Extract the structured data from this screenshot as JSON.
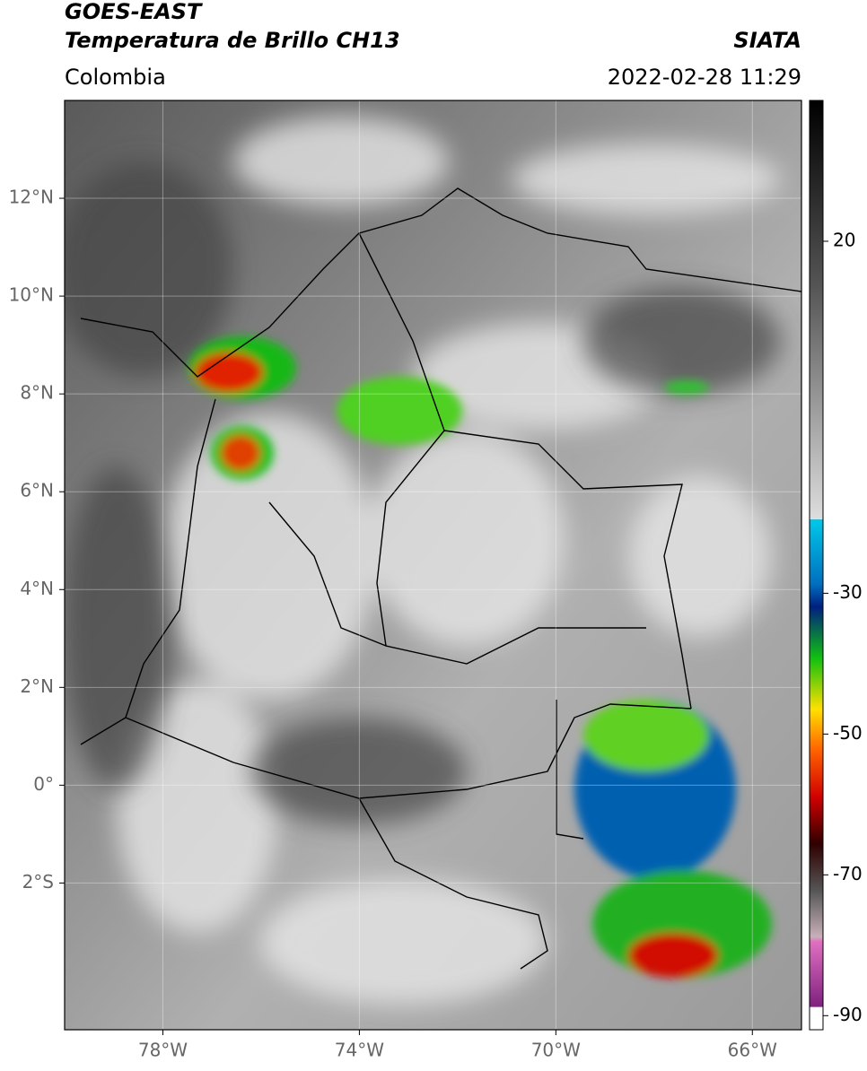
{
  "header": {
    "title": "GOES-EAST",
    "subtitle": "Temperatura de Brillo CH13",
    "source": "SIATA",
    "region": "Colombia",
    "timestamp": "2022-02-28 11:29"
  },
  "chart_data": {
    "type": "map",
    "xlim": [
      -80,
      -65
    ],
    "ylim": [
      -5,
      14
    ],
    "xticks": [
      {
        "value": -78,
        "label": "78°W"
      },
      {
        "value": -74,
        "label": "74°W"
      },
      {
        "value": -70,
        "label": "70°W"
      },
      {
        "value": -66,
        "label": "66°W"
      }
    ],
    "yticks": [
      {
        "value": 12,
        "label": "12°N"
      },
      {
        "value": 10,
        "label": "10°N"
      },
      {
        "value": 8,
        "label": "8°N"
      },
      {
        "value": 6,
        "label": "6°N"
      },
      {
        "value": 4,
        "label": "4°N"
      },
      {
        "value": 2,
        "label": "2°N"
      },
      {
        "value": 0,
        "label": "0°"
      },
      {
        "value": -2,
        "label": "2°S"
      }
    ],
    "grid": true,
    "colorbar": {
      "lim": [
        -92,
        40
      ],
      "ticks": [
        20,
        -30,
        -50,
        -70,
        -90
      ]
    }
  }
}
